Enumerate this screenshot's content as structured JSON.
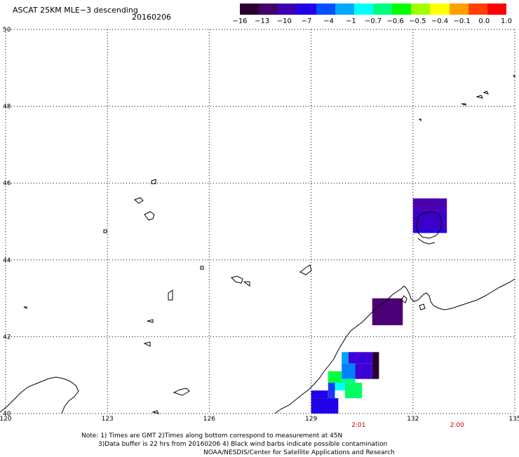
{
  "header": {
    "title": "ASCAT 25KM MLE−3 descending",
    "date": "20160206"
  },
  "colorbar": {
    "labels": [
      "−16",
      "−13",
      "−10",
      "−7",
      "−4",
      "−1",
      "−0.7",
      "−0.6",
      "−0.5",
      "−0.4",
      "−0.1",
      "0.0",
      "1.0"
    ],
    "colors": [
      "#2a0033",
      "#46006e",
      "#3c00b4",
      "#2000e8",
      "#0050ff",
      "#00a8ff",
      "#00ffff",
      "#00ff80",
      "#00ff00",
      "#a0ff00",
      "#ffff00",
      "#ffa000",
      "#ff4000",
      "#ff0000"
    ]
  },
  "map": {
    "lon_ticks": [
      "120",
      "123",
      "126",
      "129",
      "132",
      "135"
    ],
    "lat_ticks": [
      "50",
      "48",
      "46",
      "44",
      "42",
      "40"
    ],
    "time_labels": [
      "2:01",
      "2:00"
    ],
    "data_cells": [
      {
        "lon_min": 132.0,
        "lon_max": 133.0,
        "lat_min": 45.3,
        "lat_max": 45.6,
        "color": "#4b00b0"
      },
      {
        "lon_min": 132.0,
        "lon_max": 133.0,
        "lat_min": 44.8,
        "lat_max": 45.3,
        "color": "#3d00c8"
      },
      {
        "lon_min": 132.0,
        "lon_max": 133.0,
        "lat_min": 44.7,
        "lat_max": 44.8,
        "color": "#2b00e8"
      },
      {
        "lon_min": 130.8,
        "lon_max": 131.7,
        "lat_min": 42.3,
        "lat_max": 43.0,
        "color": "#4b0078"
      },
      {
        "lon_min": 129.9,
        "lon_max": 130.1,
        "lat_min": 41.3,
        "lat_max": 41.6,
        "color": "#00a0ff"
      },
      {
        "lon_min": 130.1,
        "lon_max": 130.8,
        "lat_min": 41.3,
        "lat_max": 41.6,
        "color": "#3c00d8"
      },
      {
        "lon_min": 129.9,
        "lon_max": 130.3,
        "lat_min": 40.9,
        "lat_max": 41.3,
        "color": "#0080ff"
      },
      {
        "lon_min": 130.3,
        "lon_max": 130.8,
        "lat_min": 40.9,
        "lat_max": 41.3,
        "color": "#3c00d8"
      },
      {
        "lon_min": 130.8,
        "lon_max": 131.0,
        "lat_min": 40.9,
        "lat_max": 41.6,
        "color": "#2a0033"
      },
      {
        "lon_min": 129.5,
        "lon_max": 129.9,
        "lat_min": 40.8,
        "lat_max": 41.1,
        "color": "#00ff40"
      },
      {
        "lon_min": 129.9,
        "lon_max": 130.3,
        "lat_min": 40.8,
        "lat_max": 40.9,
        "color": "#00ff80"
      },
      {
        "lon_min": 129.7,
        "lon_max": 130.0,
        "lat_min": 40.6,
        "lat_max": 40.8,
        "color": "#00ffff"
      },
      {
        "lon_min": 130.0,
        "lon_max": 130.5,
        "lat_min": 40.4,
        "lat_max": 40.8,
        "color": "#00ff60"
      },
      {
        "lon_min": 129.0,
        "lon_max": 129.5,
        "lat_min": 40.4,
        "lat_max": 40.6,
        "color": "#2000e8"
      },
      {
        "lon_min": 129.5,
        "lon_max": 129.7,
        "lat_min": 40.4,
        "lat_max": 40.8,
        "color": "#1838ff"
      },
      {
        "lon_min": 129.0,
        "lon_max": 129.8,
        "lat_min": 40.0,
        "lat_max": 40.4,
        "color": "#2000e8"
      }
    ]
  },
  "notes": {
    "line1": "Note: 1) Times are GMT 2)Times along bottom correspond to measurement at 45N",
    "line2": "3)Data buffer is 22 hrs from 20160206 4) Black wind barbs indicate possible contamination",
    "line3": "NOAA/NESDIS/Center for Satellite Applications and Research"
  }
}
